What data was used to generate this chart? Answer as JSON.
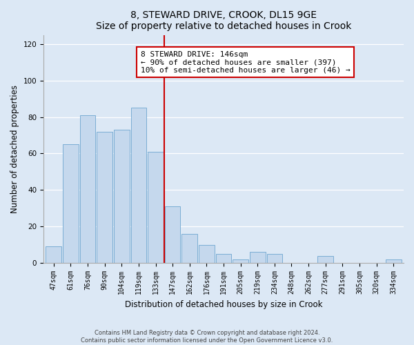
{
  "title": "8, STEWARD DRIVE, CROOK, DL15 9GE",
  "subtitle": "Size of property relative to detached houses in Crook",
  "xlabel": "Distribution of detached houses by size in Crook",
  "ylabel": "Number of detached properties",
  "bar_labels": [
    "47sqm",
    "61sqm",
    "76sqm",
    "90sqm",
    "104sqm",
    "119sqm",
    "133sqm",
    "147sqm",
    "162sqm",
    "176sqm",
    "191sqm",
    "205sqm",
    "219sqm",
    "234sqm",
    "248sqm",
    "262sqm",
    "277sqm",
    "291sqm",
    "305sqm",
    "320sqm",
    "334sqm"
  ],
  "bar_values": [
    9,
    65,
    81,
    72,
    73,
    85,
    61,
    31,
    16,
    10,
    5,
    2,
    6,
    5,
    0,
    0,
    4,
    0,
    0,
    0,
    2
  ],
  "bar_color": "#c5d8ed",
  "bar_edge_color": "#7aadd4",
  "vline_color": "#cc0000",
  "annotation_line1": "8 STEWARD DRIVE: 146sqm",
  "annotation_line2": "← 90% of detached houses are smaller (397)",
  "annotation_line3": "10% of semi-detached houses are larger (46) →",
  "annotation_box_color": "#ffffff",
  "annotation_box_edge": "#cc0000",
  "ylim": [
    0,
    125
  ],
  "yticks": [
    0,
    20,
    40,
    60,
    80,
    100,
    120
  ],
  "footer_line1": "Contains HM Land Registry data © Crown copyright and database right 2024.",
  "footer_line2": "Contains public sector information licensed under the Open Government Licence v3.0.",
  "bg_color": "#dce8f5",
  "plot_bg_color": "#dce8f5",
  "title_fontsize": 10,
  "axis_label_fontsize": 8.5,
  "tick_fontsize": 7,
  "annotation_fontsize": 8
}
